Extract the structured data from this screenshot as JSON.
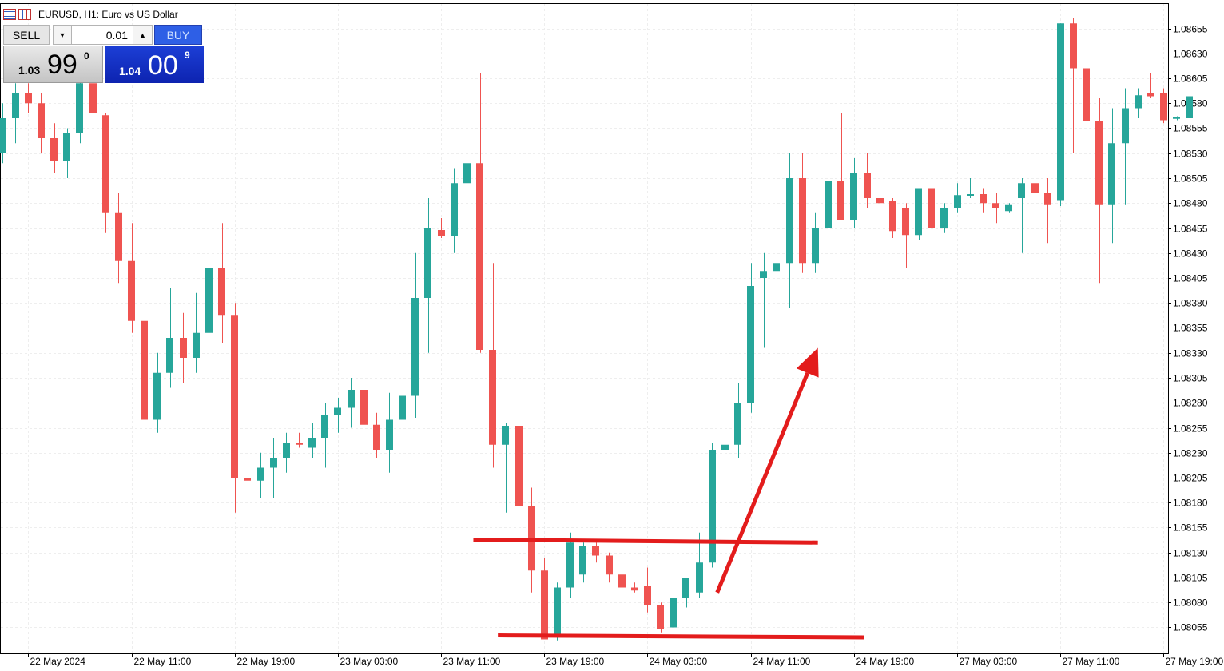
{
  "window": {
    "title": "EURUSD, H1:  Euro vs US Dollar",
    "icons": [
      "order-list-icon",
      "chart-bars-icon"
    ]
  },
  "trade_panel": {
    "sell_label": "SELL",
    "buy_label": "BUY",
    "lot_value": "0.01",
    "dropdown_glyph": "▼",
    "up_glyph": "▲",
    "sell_price": {
      "small": "1.03",
      "big": "99",
      "sup": "0"
    },
    "buy_price": {
      "small": "1.04",
      "big": "00",
      "sup": "9"
    }
  },
  "colors": {
    "bull": "#26a69a",
    "bear": "#ef5350",
    "annotation": "#e31c1c",
    "grid": "#eeeeee",
    "axis": "#000000"
  },
  "chart_data": {
    "type": "candlestick",
    "symbol": "EURUSD",
    "timeframe": "H1",
    "ylim": [
      1.08045,
      1.08668
    ],
    "y_ticks": [
      "1.08655",
      "1.08630",
      "1.08605",
      "1.08580",
      "1.08555",
      "1.08530",
      "1.08505",
      "1.08480",
      "1.08455",
      "1.08430",
      "1.08405",
      "1.08380",
      "1.08355",
      "1.08330",
      "1.08305",
      "1.08280",
      "1.08255",
      "1.08230",
      "1.08205",
      "1.08180",
      "1.08155",
      "1.08130",
      "1.08105",
      "1.08080",
      "1.08055"
    ],
    "x_ticks": [
      {
        "label": "22 May 2024",
        "bar": 2
      },
      {
        "label": "22 May 11:00",
        "bar": 10
      },
      {
        "label": "22 May 19:00",
        "bar": 18
      },
      {
        "label": "23 May 03:00",
        "bar": 26
      },
      {
        "label": "23 May 11:00",
        "bar": 34
      },
      {
        "label": "23 May 19:00",
        "bar": 42
      },
      {
        "label": "24 May 03:00",
        "bar": 50
      },
      {
        "label": "24 May 11:00",
        "bar": 58
      },
      {
        "label": "24 May 19:00",
        "bar": 66
      },
      {
        "label": "27 May 03:00",
        "bar": 74
      },
      {
        "label": "27 May 11:00",
        "bar": 82
      },
      {
        "label": "27 May 19:00",
        "bar": 90
      }
    ],
    "candles": [
      {
        "o": 1.0853,
        "h": 1.0858,
        "l": 1.0852,
        "c": 1.08565
      },
      {
        "o": 1.08565,
        "h": 1.086,
        "l": 1.0854,
        "c": 1.0859
      },
      {
        "o": 1.0859,
        "h": 1.086,
        "l": 1.0857,
        "c": 1.0858
      },
      {
        "o": 1.0858,
        "h": 1.0859,
        "l": 1.0853,
        "c": 1.08545
      },
      {
        "o": 1.08545,
        "h": 1.0856,
        "l": 1.0851,
        "c": 1.08522
      },
      {
        "o": 1.08522,
        "h": 1.08555,
        "l": 1.08505,
        "c": 1.0855
      },
      {
        "o": 1.0855,
        "h": 1.0861,
        "l": 1.0854,
        "c": 1.086
      },
      {
        "o": 1.086,
        "h": 1.0861,
        "l": 1.085,
        "c": 1.0857
      },
      {
        "o": 1.08568,
        "h": 1.0857,
        "l": 1.0845,
        "c": 1.0847
      },
      {
        "o": 1.0847,
        "h": 1.0849,
        "l": 1.084,
        "c": 1.08422
      },
      {
        "o": 1.08422,
        "h": 1.0846,
        "l": 1.0835,
        "c": 1.08362
      },
      {
        "o": 1.08362,
        "h": 1.0838,
        "l": 1.0821,
        "c": 1.08263
      },
      {
        "o": 1.08263,
        "h": 1.0833,
        "l": 1.0825,
        "c": 1.0831
      },
      {
        "o": 1.0831,
        "h": 1.08395,
        "l": 1.08295,
        "c": 1.08345
      },
      {
        "o": 1.08345,
        "h": 1.0837,
        "l": 1.083,
        "c": 1.08325
      },
      {
        "o": 1.08325,
        "h": 1.0839,
        "l": 1.0831,
        "c": 1.0835
      },
      {
        "o": 1.0835,
        "h": 1.0844,
        "l": 1.0833,
        "c": 1.08415
      },
      {
        "o": 1.08415,
        "h": 1.0846,
        "l": 1.0834,
        "c": 1.08368
      },
      {
        "o": 1.08368,
        "h": 1.0838,
        "l": 1.0817,
        "c": 1.08205
      },
      {
        "o": 1.08205,
        "h": 1.08215,
        "l": 1.08165,
        "c": 1.08202
      },
      {
        "o": 1.08202,
        "h": 1.0823,
        "l": 1.08185,
        "c": 1.08215
      },
      {
        "o": 1.08215,
        "h": 1.08245,
        "l": 1.08185,
        "c": 1.08225
      },
      {
        "o": 1.08225,
        "h": 1.0825,
        "l": 1.0821,
        "c": 1.0824
      },
      {
        "o": 1.0824,
        "h": 1.0825,
        "l": 1.08235,
        "c": 1.08238
      },
      {
        "o": 1.08235,
        "h": 1.0826,
        "l": 1.08225,
        "c": 1.08245
      },
      {
        "o": 1.08245,
        "h": 1.0828,
        "l": 1.08215,
        "c": 1.08268
      },
      {
        "o": 1.08268,
        "h": 1.08285,
        "l": 1.0825,
        "c": 1.08275
      },
      {
        "o": 1.08275,
        "h": 1.08305,
        "l": 1.08255,
        "c": 1.08293
      },
      {
        "o": 1.08293,
        "h": 1.083,
        "l": 1.0825,
        "c": 1.08258
      },
      {
        "o": 1.08258,
        "h": 1.0827,
        "l": 1.08225,
        "c": 1.08233
      },
      {
        "o": 1.08233,
        "h": 1.0829,
        "l": 1.0821,
        "c": 1.08263
      },
      {
        "o": 1.08263,
        "h": 1.08335,
        "l": 1.0812,
        "c": 1.08287
      },
      {
        "o": 1.08287,
        "h": 1.0843,
        "l": 1.08265,
        "c": 1.08385
      },
      {
        "o": 1.08385,
        "h": 1.08485,
        "l": 1.0833,
        "c": 1.08455
      },
      {
        "o": 1.08453,
        "h": 1.08465,
        "l": 1.08445,
        "c": 1.08447
      },
      {
        "o": 1.08447,
        "h": 1.08515,
        "l": 1.0843,
        "c": 1.085
      },
      {
        "o": 1.085,
        "h": 1.0853,
        "l": 1.0844,
        "c": 1.0852
      },
      {
        "o": 1.0852,
        "h": 1.0861,
        "l": 1.0833,
        "c": 1.08333
      },
      {
        "o": 1.08333,
        "h": 1.0842,
        "l": 1.08215,
        "c": 1.08238
      },
      {
        "o": 1.08238,
        "h": 1.0826,
        "l": 1.0817,
        "c": 1.08257
      },
      {
        "o": 1.08257,
        "h": 1.0829,
        "l": 1.0817,
        "c": 1.08177
      },
      {
        "o": 1.08177,
        "h": 1.08195,
        "l": 1.0809,
        "c": 1.08112
      },
      {
        "o": 1.08112,
        "h": 1.08125,
        "l": 1.08043,
        "c": 1.08043
      },
      {
        "o": 1.08045,
        "h": 1.081,
        "l": 1.08042,
        "c": 1.08095
      },
      {
        "o": 1.08095,
        "h": 1.0815,
        "l": 1.08085,
        "c": 1.0814
      },
      {
        "o": 1.08108,
        "h": 1.0814,
        "l": 1.081,
        "c": 1.08137
      },
      {
        "o": 1.08137,
        "h": 1.0814,
        "l": 1.0812,
        "c": 1.08127
      },
      {
        "o": 1.08127,
        "h": 1.0813,
        "l": 1.081,
        "c": 1.08108
      },
      {
        "o": 1.08108,
        "h": 1.0812,
        "l": 1.0807,
        "c": 1.08095
      },
      {
        "o": 1.08095,
        "h": 1.081,
        "l": 1.0809,
        "c": 1.08092
      },
      {
        "o": 1.08097,
        "h": 1.08115,
        "l": 1.0807,
        "c": 1.08077
      },
      {
        "o": 1.08077,
        "h": 1.0808,
        "l": 1.0805,
        "c": 1.08053
      },
      {
        "o": 1.08055,
        "h": 1.08095,
        "l": 1.0805,
        "c": 1.08085
      },
      {
        "o": 1.08085,
        "h": 1.081,
        "l": 1.08075,
        "c": 1.08105
      },
      {
        "o": 1.0809,
        "h": 1.0815,
        "l": 1.08085,
        "c": 1.0812
      },
      {
        "o": 1.0812,
        "h": 1.0824,
        "l": 1.08115,
        "c": 1.08233
      },
      {
        "o": 1.08233,
        "h": 1.0828,
        "l": 1.082,
        "c": 1.08238
      },
      {
        "o": 1.08238,
        "h": 1.083,
        "l": 1.08225,
        "c": 1.0828
      },
      {
        "o": 1.0828,
        "h": 1.0842,
        "l": 1.0827,
        "c": 1.08397
      },
      {
        "o": 1.08405,
        "h": 1.0843,
        "l": 1.08335,
        "c": 1.08412
      },
      {
        "o": 1.08412,
        "h": 1.0843,
        "l": 1.08405,
        "c": 1.0842
      },
      {
        "o": 1.0842,
        "h": 1.0853,
        "l": 1.08375,
        "c": 1.08505
      },
      {
        "o": 1.08505,
        "h": 1.0853,
        "l": 1.0841,
        "c": 1.0842
      },
      {
        "o": 1.0842,
        "h": 1.0847,
        "l": 1.0841,
        "c": 1.08455
      },
      {
        "o": 1.08455,
        "h": 1.08545,
        "l": 1.0845,
        "c": 1.08502
      },
      {
        "o": 1.08502,
        "h": 1.0857,
        "l": 1.08463,
        "c": 1.08463
      },
      {
        "o": 1.08463,
        "h": 1.08525,
        "l": 1.08455,
        "c": 1.0851
      },
      {
        "o": 1.0851,
        "h": 1.0853,
        "l": 1.08475,
        "c": 1.08485
      },
      {
        "o": 1.08485,
        "h": 1.0849,
        "l": 1.08475,
        "c": 1.0848
      },
      {
        "o": 1.08482,
        "h": 1.08485,
        "l": 1.08445,
        "c": 1.08452
      },
      {
        "o": 1.08475,
        "h": 1.0848,
        "l": 1.08415,
        "c": 1.08448
      },
      {
        "o": 1.08448,
        "h": 1.08495,
        "l": 1.08443,
        "c": 1.08495
      },
      {
        "o": 1.08495,
        "h": 1.085,
        "l": 1.0845,
        "c": 1.08455
      },
      {
        "o": 1.08455,
        "h": 1.0848,
        "l": 1.0845,
        "c": 1.08475
      },
      {
        "o": 1.08475,
        "h": 1.085,
        "l": 1.0847,
        "c": 1.08488
      },
      {
        "o": 1.08488,
        "h": 1.08505,
        "l": 1.08485,
        "c": 1.08489
      },
      {
        "o": 1.08489,
        "h": 1.08495,
        "l": 1.0847,
        "c": 1.0848
      },
      {
        "o": 1.0848,
        "h": 1.0849,
        "l": 1.0846,
        "c": 1.08475
      },
      {
        "o": 1.08472,
        "h": 1.0848,
        "l": 1.0847,
        "c": 1.08478
      },
      {
        "o": 1.08485,
        "h": 1.08505,
        "l": 1.0843,
        "c": 1.085
      },
      {
        "o": 1.085,
        "h": 1.0851,
        "l": 1.08465,
        "c": 1.0849
      },
      {
        "o": 1.0849,
        "h": 1.08505,
        "l": 1.0844,
        "c": 1.08478
      },
      {
        "o": 1.08483,
        "h": 1.0866,
        "l": 1.08477,
        "c": 1.0866
      },
      {
        "o": 1.0866,
        "h": 1.08665,
        "l": 1.0853,
        "c": 1.08615
      },
      {
        "o": 1.08615,
        "h": 1.08625,
        "l": 1.08545,
        "c": 1.08562
      },
      {
        "o": 1.08562,
        "h": 1.08585,
        "l": 1.084,
        "c": 1.08478
      },
      {
        "o": 1.08478,
        "h": 1.08575,
        "l": 1.0844,
        "c": 1.0854
      },
      {
        "o": 1.0854,
        "h": 1.08595,
        "l": 1.08478,
        "c": 1.08575
      },
      {
        "o": 1.08575,
        "h": 1.08595,
        "l": 1.08565,
        "c": 1.08588
      },
      {
        "o": 1.0859,
        "h": 1.0861,
        "l": 1.08585,
        "c": 1.08587
      },
      {
        "o": 1.0859,
        "h": 1.08595,
        "l": 1.0856,
        "c": 1.08563
      },
      {
        "o": 1.08565,
        "h": 1.08567,
        "l": 1.08563,
        "c": 1.08566
      },
      {
        "o": 1.08565,
        "h": 1.0859,
        "l": 1.0856,
        "c": 1.08587
      }
    ],
    "annotations": [
      {
        "kind": "trendline",
        "bar1": 36.5,
        "price1": 1.08143,
        "bar2": 63.2,
        "price2": 1.0814
      },
      {
        "kind": "trendline",
        "bar1": 38.4,
        "price1": 1.08047,
        "bar2": 66.8,
        "price2": 1.08045
      },
      {
        "kind": "arrow",
        "bar1": 55.4,
        "price1": 1.0809,
        "bar2": 63.2,
        "price2": 1.08335
      }
    ]
  }
}
